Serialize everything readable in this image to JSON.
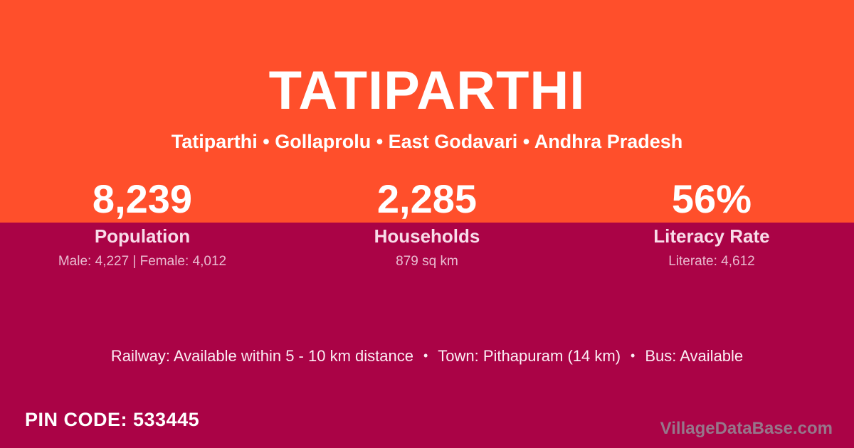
{
  "colors": {
    "top_band_bg": "#ff4f2b",
    "bottom_band_bg": "#aa0346",
    "title_text": "#ffffff",
    "stat_label_text": "#f8dce9",
    "stat_detail_text": "#e9bbd0",
    "transport_text": "#fbedf4",
    "watermark_text": "#97768a"
  },
  "header": {
    "title": "TATIPARTHI",
    "breadcrumb": "Tatiparthi • Gollaprolu • East Godavari • Andhra Pradesh"
  },
  "stats": [
    {
      "value": "8,239",
      "label": "Population",
      "detail": "Male: 4,227 | Female: 4,012"
    },
    {
      "value": "2,285",
      "label": "Households",
      "detail": "879 sq km"
    },
    {
      "value": "56%",
      "label": "Literacy Rate",
      "detail": "Literate: 4,612"
    }
  ],
  "transport": {
    "separator": "•",
    "items": [
      "Railway: Available within 5 - 10 km distance",
      "Town: Pithapuram (14 km)",
      "Bus: Available"
    ]
  },
  "footer": {
    "pin_code": "PIN CODE: 533445",
    "watermark": "VillageDataBase.com"
  }
}
